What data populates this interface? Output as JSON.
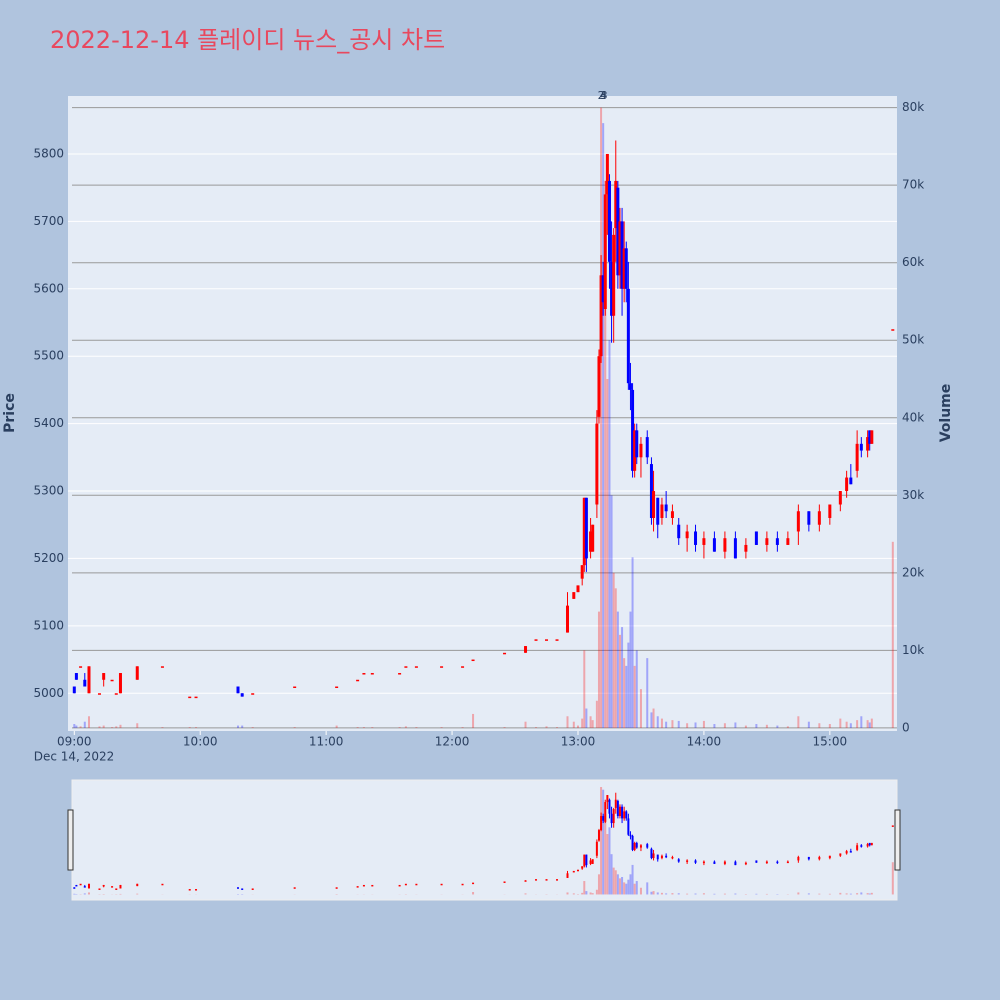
{
  "chart_data": {
    "type": "candlestick",
    "title": "2022-12-14 플레이디 뉴스_공시 차트",
    "y_label": "Price",
    "y2_label": "Volume",
    "x_date_label": "Dec 14, 2022",
    "xlim": [
      "08:57",
      "15:32"
    ],
    "xticks": [
      "09:00",
      "10:00",
      "11:00",
      "12:00",
      "13:00",
      "14:00",
      "15:00"
    ],
    "ylim": [
      4944,
      5886
    ],
    "yticks": [
      5000,
      5100,
      5200,
      5300,
      5400,
      5500,
      5600,
      5700,
      5800
    ],
    "y2lim": [
      -400,
      81500
    ],
    "y2ticks": [
      0,
      {
        "value": 10000,
        "label": "10k"
      },
      {
        "value": 20000,
        "label": "20k"
      },
      {
        "value": 30000,
        "label": "30k"
      },
      {
        "value": 40000,
        "label": "40k"
      },
      {
        "value": 50000,
        "label": "50k"
      },
      {
        "value": 60000,
        "label": "60k"
      },
      {
        "value": 70000,
        "label": "70k"
      },
      {
        "value": 80000,
        "label": "80k"
      }
    ],
    "up_color": "#ff0000",
    "down_color": "#0000ff",
    "grid": true,
    "rangeslider": true,
    "annotations": [
      {
        "x": "13:11",
        "text": "2"
      },
      {
        "x": "13:11",
        "text": "3"
      },
      {
        "x": "13:12",
        "text": "4"
      }
    ],
    "x": [
      "09:00",
      "09:01",
      "09:03",
      "09:05",
      "09:07",
      "09:12",
      "09:14",
      "09:18",
      "09:20",
      "09:22",
      "09:30",
      "09:42",
      "09:55",
      "09:58",
      "10:18",
      "10:20",
      "10:25",
      "10:45",
      "11:05",
      "11:15",
      "11:18",
      "11:22",
      "11:35",
      "11:38",
      "11:43",
      "11:55",
      "12:05",
      "12:10",
      "12:25",
      "12:35",
      "12:40",
      "12:45",
      "12:50",
      "12:55",
      "12:58",
      "13:00",
      "13:02",
      "13:03",
      "13:04",
      "13:06",
      "13:07",
      "13:09",
      "13:10",
      "13:11",
      "13:12",
      "13:13",
      "13:14",
      "13:15",
      "13:16",
      "13:17",
      "13:18",
      "13:19",
      "13:20",
      "13:21",
      "13:22",
      "13:23",
      "13:24",
      "13:25",
      "13:26",
      "13:27",
      "13:28",
      "13:30",
      "13:33",
      "13:35",
      "13:36",
      "13:38",
      "13:40",
      "13:42",
      "13:45",
      "13:48",
      "13:52",
      "13:56",
      "14:00",
      "14:05",
      "14:10",
      "14:15",
      "14:20",
      "14:25",
      "14:30",
      "14:35",
      "14:40",
      "14:45",
      "14:50",
      "14:55",
      "15:00",
      "15:05",
      "15:08",
      "15:10",
      "15:13",
      "15:15",
      "15:18",
      "15:19",
      "15:20",
      "15:30"
    ],
    "open": [
      5010,
      5030,
      5040,
      5020,
      5000,
      5000,
      5020,
      5020,
      5000,
      5000,
      5020,
      5040,
      4995,
      4995,
      5010,
      5000,
      5000,
      5010,
      5010,
      5020,
      5030,
      5030,
      5030,
      5040,
      5040,
      5040,
      5040,
      5050,
      5060,
      5060,
      5080,
      5080,
      5080,
      5090,
      5140,
      5150,
      5170,
      5190,
      5290,
      5210,
      5210,
      5280,
      5410,
      5500,
      5620,
      5570,
      5740,
      5760,
      5640,
      5560,
      5690,
      5750,
      5620,
      5700,
      5600,
      5660,
      5600,
      5460,
      5450,
      5330,
      5390,
      5350,
      5380,
      5340,
      5260,
      5290,
      5260,
      5280,
      5260,
      5250,
      5230,
      5240,
      5220,
      5230,
      5210,
      5230,
      5210,
      5240,
      5220,
      5230,
      5220,
      5240,
      5270,
      5250,
      5260,
      5280,
      5300,
      5320,
      5330,
      5370,
      5360,
      5390,
      5370,
      5540
    ],
    "high": [
      5010,
      5030,
      5040,
      5030,
      5040,
      5000,
      5030,
      5020,
      5000,
      5030,
      5040,
      5040,
      4995,
      4995,
      5010,
      5000,
      5000,
      5010,
      5010,
      5020,
      5030,
      5030,
      5030,
      5040,
      5040,
      5040,
      5040,
      5050,
      5060,
      5070,
      5080,
      5080,
      5080,
      5150,
      5150,
      5160,
      5190,
      5290,
      5290,
      5260,
      5250,
      5420,
      5510,
      5650,
      5640,
      5760,
      5800,
      5770,
      5700,
      5690,
      5820,
      5760,
      5720,
      5720,
      5700,
      5670,
      5640,
      5490,
      5460,
      5400,
      5400,
      5380,
      5390,
      5350,
      5330,
      5290,
      5290,
      5300,
      5280,
      5260,
      5250,
      5250,
      5240,
      5240,
      5240,
      5240,
      5230,
      5240,
      5240,
      5240,
      5240,
      5280,
      5270,
      5280,
      5280,
      5300,
      5330,
      5340,
      5390,
      5380,
      5390,
      5390,
      5390,
      5540
    ],
    "low": [
      5000,
      5020,
      5040,
      5010,
      5000,
      5000,
      5010,
      5020,
      5000,
      5000,
      5020,
      5040,
      4995,
      4995,
      5000,
      4995,
      5000,
      5010,
      5010,
      5020,
      5030,
      5030,
      5030,
      5040,
      5040,
      5040,
      5040,
      5050,
      5060,
      5060,
      5080,
      5080,
      5080,
      5090,
      5140,
      5150,
      5160,
      5180,
      5180,
      5200,
      5210,
      5260,
      5400,
      5490,
      5560,
      5560,
      5680,
      5600,
      5520,
      5520,
      5640,
      5600,
      5600,
      5560,
      5580,
      5580,
      5450,
      5420,
      5320,
      5320,
      5340,
      5320,
      5340,
      5250,
      5240,
      5230,
      5250,
      5260,
      5250,
      5220,
      5210,
      5210,
      5200,
      5210,
      5200,
      5200,
      5200,
      5220,
      5210,
      5210,
      5220,
      5220,
      5240,
      5240,
      5250,
      5270,
      5290,
      5310,
      5320,
      5350,
      5350,
      5360,
      5370,
      5540
    ],
    "close": [
      5000,
      5020,
      5040,
      5010,
      5040,
      5000,
      5030,
      5020,
      5000,
      5030,
      5040,
      5040,
      4995,
      4995,
      5000,
      4995,
      5000,
      5010,
      5010,
      5020,
      5030,
      5030,
      5030,
      5040,
      5040,
      5040,
      5040,
      5050,
      5060,
      5070,
      5080,
      5080,
      5080,
      5130,
      5150,
      5160,
      5190,
      5290,
      5200,
      5240,
      5250,
      5400,
      5500,
      5620,
      5580,
      5740,
      5800,
      5640,
      5560,
      5680,
      5760,
      5620,
      5700,
      5600,
      5660,
      5600,
      5460,
      5450,
      5330,
      5390,
      5350,
      5370,
      5350,
      5260,
      5300,
      5250,
      5280,
      5270,
      5270,
      5230,
      5240,
      5220,
      5230,
      5210,
      5230,
      5200,
      5220,
      5220,
      5230,
      5220,
      5230,
      5270,
      5250,
      5270,
      5280,
      5300,
      5320,
      5310,
      5370,
      5360,
      5380,
      5370,
      5390,
      5540
    ],
    "volume": [
      500,
      300,
      200,
      800,
      1500,
      200,
      300,
      100,
      200,
      400,
      600,
      100,
      100,
      100,
      300,
      300,
      100,
      100,
      300,
      100,
      100,
      100,
      100,
      200,
      100,
      100,
      100,
      1800,
      100,
      800,
      100,
      200,
      100,
      1500,
      800,
      300,
      1200,
      10000,
      2500,
      1500,
      1000,
      3500,
      15000,
      80000,
      78000,
      60000,
      45000,
      50000,
      30000,
      20000,
      18000,
      15000,
      12000,
      13000,
      9000,
      8000,
      11000,
      15000,
      22000,
      8000,
      10000,
      5000,
      9000,
      2000,
      2500,
      1500,
      1200,
      800,
      1000,
      900,
      600,
      700,
      900,
      500,
      600,
      700,
      300,
      500,
      400,
      300,
      200,
      1500,
      800,
      600,
      500,
      1200,
      800,
      600,
      1000,
      1500,
      1000,
      700,
      1200,
      24000
    ]
  }
}
